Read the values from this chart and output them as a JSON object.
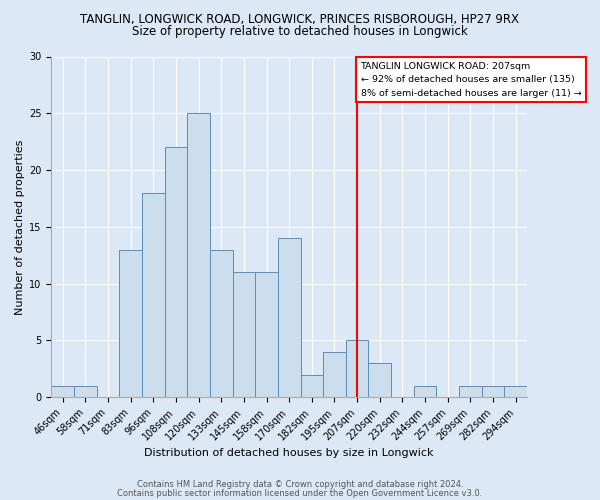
{
  "title1": "TANGLIN, LONGWICK ROAD, LONGWICK, PRINCES RISBOROUGH, HP27 9RX",
  "title2": "Size of property relative to detached houses in Longwick",
  "xlabel": "Distribution of detached houses by size in Longwick",
  "ylabel": "Number of detached properties",
  "footer1": "Contains HM Land Registry data © Crown copyright and database right 2024.",
  "footer2": "Contains public sector information licensed under the Open Government Licence v3.0.",
  "bin_labels": [
    "46sqm",
    "58sqm",
    "71sqm",
    "83sqm",
    "96sqm",
    "108sqm",
    "120sqm",
    "133sqm",
    "145sqm",
    "158sqm",
    "170sqm",
    "182sqm",
    "195sqm",
    "207sqm",
    "220sqm",
    "232sqm",
    "244sqm",
    "257sqm",
    "269sqm",
    "282sqm",
    "294sqm"
  ],
  "bar_heights": [
    1,
    1,
    0,
    13,
    18,
    22,
    25,
    13,
    11,
    11,
    14,
    2,
    4,
    5,
    3,
    0,
    1,
    0,
    1,
    1,
    1
  ],
  "bar_color": "#ccdded",
  "bar_edge_color": "#5b8db8",
  "vline_x_index": 13,
  "vline_color": "red",
  "annotation_line1": "TANGLIN LONGWICK ROAD: 207sqm",
  "annotation_line2": "← 92% of detached houses are smaller (135)",
  "annotation_line3": "8% of semi-detached houses are larger (11) →",
  "ylim": [
    0,
    30
  ],
  "yticks": [
    0,
    5,
    10,
    15,
    20,
    25,
    30
  ],
  "background_color": "#dce8f5",
  "grid_color": "#ffffff",
  "box_edge_color": "red",
  "title1_fontsize": 8.5,
  "title2_fontsize": 8.5,
  "xlabel_fontsize": 8,
  "ylabel_fontsize": 8,
  "tick_fontsize": 7,
  "footer_fontsize": 6
}
